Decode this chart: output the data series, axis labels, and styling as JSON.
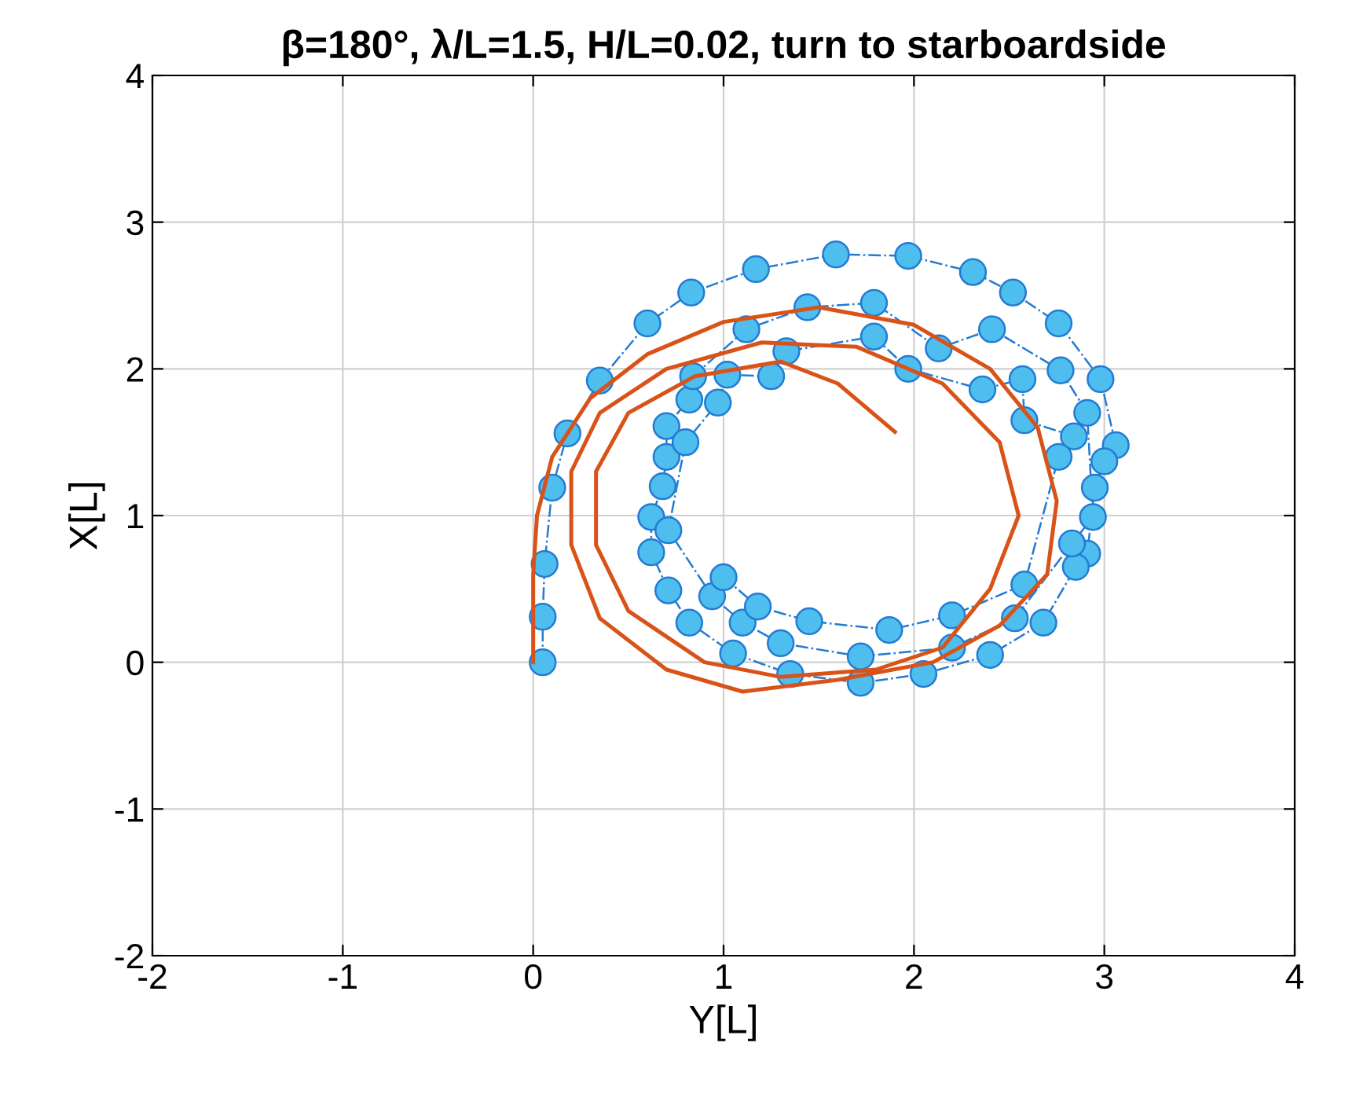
{
  "chart_data": {
    "type": "line",
    "title": "β=180°, λ/L=1.5, H/L=0.02, turn to starboardside",
    "xlabel": "Y[L]",
    "ylabel": "X[L]",
    "xlim": [
      -2,
      4
    ],
    "ylim": [
      -2,
      4
    ],
    "xticks": [
      -2,
      -1,
      0,
      1,
      2,
      3,
      4
    ],
    "yticks": [
      -2,
      -1,
      0,
      1,
      2,
      3,
      4
    ],
    "grid": true,
    "legend": false,
    "series": [
      {
        "color": "#d95319",
        "marker": "none",
        "line_style": "solid",
        "x": [
          0,
          0,
          0.02,
          0.1,
          0.3,
          0.6,
          1.0,
          1.5,
          2.0,
          2.4,
          2.65,
          2.75,
          2.7,
          2.45,
          2.1,
          1.6,
          1.1,
          0.7,
          0.35,
          0.2,
          0.2,
          0.35,
          0.7,
          1.2,
          1.7,
          2.15,
          2.45,
          2.55,
          2.4,
          2.15,
          1.8,
          1.3,
          0.9,
          0.5,
          0.33,
          0.33,
          0.5,
          0.85,
          1.3,
          1.6,
          1.9
        ],
        "values": [
          0,
          0.6,
          1.0,
          1.4,
          1.8,
          2.1,
          2.32,
          2.42,
          2.3,
          2.0,
          1.6,
          1.1,
          0.6,
          0.25,
          0.0,
          -0.12,
          -0.2,
          -0.05,
          0.3,
          0.8,
          1.3,
          1.7,
          2.0,
          2.18,
          2.15,
          1.9,
          1.5,
          1.0,
          0.5,
          0.1,
          -0.05,
          -0.1,
          0.0,
          0.35,
          0.8,
          1.3,
          1.7,
          1.95,
          2.05,
          1.9,
          1.57
        ]
      },
      {
        "color": "#4dbeee",
        "marker": "circle",
        "line_style": "dashed",
        "x": [
          0.05,
          0.05,
          0.06,
          0.1,
          0.18,
          0.35,
          0.6,
          0.83,
          1.17,
          1.59,
          1.97,
          2.31,
          2.52,
          2.76,
          2.98,
          3.06,
          3.0,
          2.95,
          2.91,
          2.85,
          2.68,
          2.4,
          2.05,
          1.72,
          1.35,
          1.05,
          0.82,
          0.71,
          0.62,
          0.62,
          0.68,
          0.7,
          0.7,
          0.82,
          0.84,
          1.12,
          1.44,
          1.79,
          2.13,
          2.41,
          2.77,
          2.91,
          2.94,
          2.83,
          2.53,
          2.2,
          1.72,
          1.3,
          1.1,
          0.94,
          0.71,
          0.8,
          0.97,
          1.02,
          1.25,
          1.33,
          1.79,
          1.97,
          2.36,
          2.57,
          2.58,
          2.84,
          2.76,
          2.58,
          2.2,
          1.87,
          1.45,
          1.18,
          1.0
        ],
        "values": [
          0,
          0.31,
          0.67,
          1.19,
          1.56,
          1.92,
          2.31,
          2.52,
          2.68,
          2.78,
          2.77,
          2.66,
          2.52,
          2.31,
          1.93,
          1.48,
          1.37,
          1.19,
          0.74,
          0.65,
          0.27,
          0.05,
          -0.08,
          -0.14,
          -0.08,
          0.06,
          0.27,
          0.49,
          0.75,
          0.99,
          1.2,
          1.4,
          1.61,
          1.79,
          1.95,
          2.27,
          2.42,
          2.45,
          2.14,
          2.27,
          1.99,
          1.7,
          0.99,
          0.81,
          0.3,
          0.1,
          0.04,
          0.13,
          0.27,
          0.45,
          0.9,
          1.5,
          1.77,
          1.96,
          1.95,
          2.12,
          2.22,
          2.0,
          1.86,
          1.93,
          1.65,
          1.54,
          1.4,
          0.53,
          0.32,
          0.22,
          0.28,
          0.38,
          0.58
        ]
      }
    ]
  }
}
